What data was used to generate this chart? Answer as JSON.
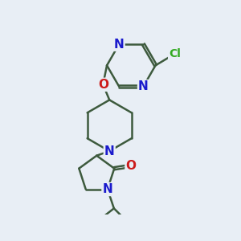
{
  "bg_color": "#e8eef5",
  "bond_color": "#3d5a3d",
  "N_color": "#1a1acc",
  "O_color": "#cc1a1a",
  "Cl_color": "#33aa22",
  "lw": 1.8,
  "dbo": 0.022,
  "fs": 11,
  "fs_cl": 10,
  "figsize": [
    3.0,
    3.0
  ],
  "dpi": 100,
  "xlim": [
    0.55,
    2.65
  ],
  "ylim": [
    0.05,
    2.95
  ]
}
